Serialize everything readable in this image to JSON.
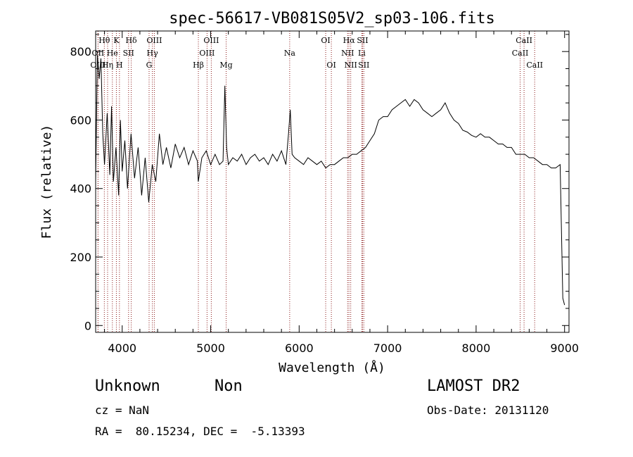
{
  "chart_data": {
    "type": "line",
    "title": "spec-56617-VB081S05V2_sp03-106.fits",
    "xlabel": "Wavelength (Å)",
    "ylabel": "Flux (relative)",
    "xlim": [
      3700,
      9050
    ],
    "ylim": [
      -20,
      860
    ],
    "xticks": [
      4000,
      5000,
      6000,
      7000,
      8000,
      9000
    ],
    "yticks": [
      0,
      200,
      400,
      600,
      800
    ],
    "grid": false,
    "line_color": "#000000",
    "line_marker_color": "#8b1a1a",
    "series": [
      {
        "x": [
          3700,
          3720,
          3740,
          3760,
          3780,
          3800,
          3830,
          3860,
          3880,
          3900,
          3930,
          3960,
          3980,
          4000,
          4030,
          4060,
          4100,
          4140,
          4180,
          4220,
          4260,
          4300,
          4340,
          4380,
          4420,
          4460,
          4500,
          4550,
          4600,
          4650,
          4700,
          4750,
          4800,
          4850,
          4860,
          4900,
          4950,
          5000,
          5050,
          5100,
          5140,
          5160,
          5180,
          5200,
          5250,
          5300,
          5350,
          5400,
          5450,
          5500,
          5550,
          5600,
          5650,
          5700,
          5750,
          5800,
          5850,
          5880,
          5900,
          5920,
          5950,
          6000,
          6050,
          6100,
          6150,
          6200,
          6250,
          6300,
          6350,
          6400,
          6450,
          6500,
          6550,
          6600,
          6650,
          6700,
          6750,
          6800,
          6850,
          6900,
          6950,
          7000,
          7050,
          7100,
          7150,
          7200,
          7250,
          7300,
          7350,
          7400,
          7450,
          7500,
          7550,
          7600,
          7650,
          7700,
          7750,
          7800,
          7850,
          7900,
          7950,
          8000,
          8050,
          8100,
          8150,
          8200,
          8250,
          8300,
          8350,
          8400,
          8450,
          8500,
          8550,
          8600,
          8650,
          8700,
          8750,
          8800,
          8850,
          8900,
          8950,
          8980,
          9000
        ],
        "y": [
          420,
          790,
          720,
          780,
          560,
          470,
          620,
          440,
          640,
          420,
          520,
          380,
          600,
          450,
          540,
          400,
          560,
          430,
          520,
          380,
          490,
          360,
          470,
          420,
          560,
          470,
          520,
          460,
          530,
          490,
          520,
          470,
          510,
          480,
          420,
          490,
          510,
          470,
          500,
          470,
          480,
          700,
          520,
          470,
          490,
          480,
          500,
          470,
          490,
          500,
          480,
          490,
          470,
          500,
          480,
          510,
          470,
          560,
          630,
          500,
          490,
          480,
          470,
          490,
          480,
          470,
          480,
          460,
          470,
          470,
          480,
          490,
          490,
          500,
          500,
          510,
          520,
          540,
          560,
          600,
          610,
          610,
          630,
          640,
          650,
          660,
          640,
          660,
          650,
          630,
          620,
          610,
          620,
          630,
          650,
          620,
          600,
          590,
          570,
          565,
          555,
          550,
          560,
          550,
          550,
          540,
          530,
          530,
          520,
          520,
          500,
          500,
          500,
          490,
          490,
          480,
          470,
          470,
          460,
          460,
          470,
          80,
          60
        ]
      }
    ],
    "line_annotations": [
      {
        "label": "Hθ",
        "x": 3798,
        "row": 1
      },
      {
        "label": "OII",
        "x": 3727,
        "row": 2
      },
      {
        "label": "OIII",
        "x": 3727,
        "row": 3
      },
      {
        "label": "Hη",
        "x": 3835,
        "row": 3
      },
      {
        "label": "He",
        "x": 3889,
        "row": 2
      },
      {
        "label": "K",
        "x": 3934,
        "row": 1
      },
      {
        "label": "H",
        "x": 3969,
        "row": 3
      },
      {
        "label": "SII",
        "x": 4072,
        "row": 2
      },
      {
        "label": "Hδ",
        "x": 4102,
        "row": 1
      },
      {
        "label": "OIII",
        "x": 4363,
        "row": 1
      },
      {
        "label": "Hγ",
        "x": 4341,
        "row": 2
      },
      {
        "label": "G",
        "x": 4304,
        "row": 3
      },
      {
        "label": "Hβ",
        "x": 4861,
        "row": 3
      },
      {
        "label": "OIII",
        "x": 5007,
        "row": 1
      },
      {
        "label": "OIII",
        "x": 4959,
        "row": 2
      },
      {
        "label": "Mg",
        "x": 5175,
        "row": 3
      },
      {
        "label": "Na",
        "x": 5893,
        "row": 2
      },
      {
        "label": "OI",
        "x": 6300,
        "row": 1
      },
      {
        "label": "OI",
        "x": 6364,
        "row": 3
      },
      {
        "label": "Hα",
        "x": 6563,
        "row": 1
      },
      {
        "label": "NII",
        "x": 6548,
        "row": 2
      },
      {
        "label": "NII",
        "x": 6583,
        "row": 3
      },
      {
        "label": "SII",
        "x": 6717,
        "row": 1
      },
      {
        "label": "Li",
        "x": 6708,
        "row": 2
      },
      {
        "label": "SII",
        "x": 6731,
        "row": 3
      },
      {
        "label": "CaII",
        "x": 8542,
        "row": 1
      },
      {
        "label": "CaII",
        "x": 8498,
        "row": 2
      },
      {
        "label": "CaII",
        "x": 8662,
        "row": 3
      }
    ]
  },
  "footer": {
    "class": "Unknown",
    "subclass": "Non",
    "survey": "LAMOST DR2",
    "cz": "cz = NaN",
    "obs_date": "Obs-Date: 20131120",
    "radec": "RA =  80.15234, DEC =  -5.13393"
  }
}
